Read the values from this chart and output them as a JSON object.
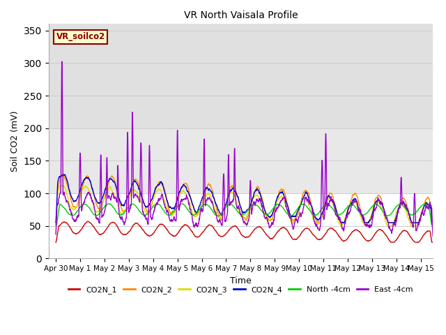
{
  "title": "VR North Vaisala Profile",
  "xlabel": "Time",
  "ylabel": "Soil CO2 (mV)",
  "watermark": "VR_soilco2",
  "xlim_days": [
    -0.3,
    15.5
  ],
  "ylim": [
    0,
    360
  ],
  "yticks": [
    0,
    50,
    100,
    150,
    200,
    250,
    300,
    350
  ],
  "xtick_labels": [
    "Apr 30",
    "May 1",
    "May 2",
    "May 3",
    "May 4",
    "May 5",
    "May 6",
    "May 7",
    "May 8",
    "May 9",
    "May 10",
    "May 11",
    "May 12",
    "May 13",
    "May 14",
    "May 15"
  ],
  "xtick_positions": [
    0,
    1,
    2,
    3,
    4,
    5,
    6,
    7,
    8,
    9,
    10,
    11,
    12,
    13,
    14,
    15
  ],
  "series_colors": [
    "#cc0000",
    "#ff8800",
    "#dddd00",
    "#0000cc",
    "#00cc00",
    "#9900cc"
  ],
  "legend_labels": [
    "CO2N_1",
    "CO2N_2",
    "CO2N_3",
    "CO2N_4",
    "North -4cm",
    "East -4cm"
  ],
  "band1_color": "#e8e8e8",
  "band2_color": "#d8d8d8",
  "grid_color": "#cccccc",
  "watermark_text_color": "#8B0000",
  "watermark_bg": "#ffffcc",
  "watermark_edge": "#8B0000"
}
